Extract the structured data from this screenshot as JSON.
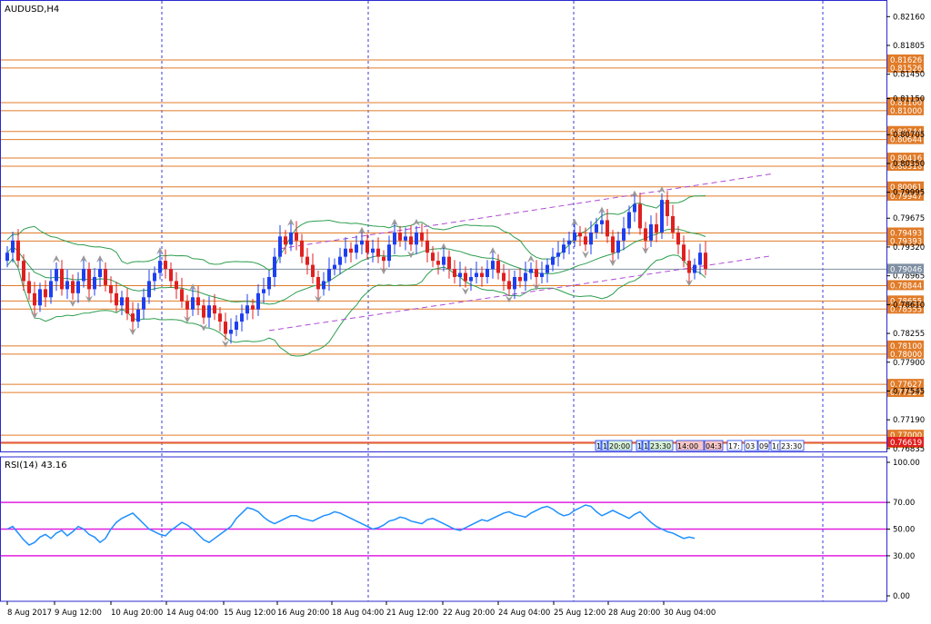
{
  "chart_data": [
    {
      "type": "candlestick",
      "title": "AUDUSD,H4",
      "y_range": [
        0.768,
        0.8232
      ],
      "y_ticks": [
        "0.82160",
        "0.81805",
        "0.81450",
        "0.81150",
        "0.80705",
        "0.80350",
        "0.79995",
        "0.79675",
        "0.79320",
        "0.78965",
        "0.78610",
        "0.78255",
        "0.77900",
        "0.77545",
        "0.77190",
        "0.76835"
      ],
      "x_labels": [
        "8 Aug 2017",
        "9 Aug 12:00",
        "10 Aug 20:00",
        "14 Aug 04:00",
        "15 Aug 12:00",
        "16 Aug 20:00",
        "18 Aug 04:00",
        "21 Aug 12:00",
        "22 Aug 20:00",
        "24 Aug 04:00",
        "25 Aug 12:00",
        "28 Aug 20:00",
        "30 Aug 04:00"
      ],
      "horizontal_levels": [
        0.81626,
        0.81526,
        0.811,
        0.81,
        0.80744,
        0.80644,
        0.80416,
        0.80316,
        0.80061,
        0.79947,
        0.79493,
        0.79393,
        0.78844,
        0.78655,
        0.78555,
        0.781,
        0.78,
        0.77627,
        0.77527,
        0.77,
        0.769
      ],
      "level_labels": [
        "0.81626",
        "0.81526",
        "0.81100",
        "0.81000",
        "0.80744",
        "0.80644",
        "0.80416",
        "0.80316",
        "0.80061",
        "0.79947",
        "0.79493",
        "0.79393",
        "0.78844",
        "0.78655",
        "0.78555",
        "0.78100",
        "0.78000",
        "0.77627",
        "0.77527",
        "0.77000",
        "0.76900"
      ],
      "current_price": "0.79046",
      "marked_price": "0.76619",
      "closes": [
        0.7925,
        0.794,
        0.7915,
        0.789,
        0.7875,
        0.786,
        0.788,
        0.787,
        0.789,
        0.7905,
        0.788,
        0.789,
        0.7875,
        0.789,
        0.7905,
        0.788,
        0.7895,
        0.7905,
        0.7885,
        0.7875,
        0.786,
        0.787,
        0.785,
        0.784,
        0.7855,
        0.787,
        0.789,
        0.79,
        0.7915,
        0.7905,
        0.789,
        0.788,
        0.7865,
        0.7855,
        0.787,
        0.786,
        0.7845,
        0.786,
        0.785,
        0.784,
        0.7825,
        0.783,
        0.784,
        0.785,
        0.786,
        0.7855,
        0.7875,
        0.788,
        0.7895,
        0.792,
        0.7945,
        0.7935,
        0.795,
        0.794,
        0.792,
        0.791,
        0.7895,
        0.788,
        0.789,
        0.7905,
        0.791,
        0.792,
        0.793,
        0.7925,
        0.7935,
        0.794,
        0.7925,
        0.793,
        0.792,
        0.7915,
        0.7935,
        0.795,
        0.794,
        0.7945,
        0.7935,
        0.795,
        0.794,
        0.7925,
        0.7915,
        0.791,
        0.792,
        0.7905,
        0.7895,
        0.79,
        0.789,
        0.7895,
        0.79,
        0.7895,
        0.7905,
        0.7915,
        0.79,
        0.789,
        0.788,
        0.7895,
        0.789,
        0.79,
        0.7905,
        0.7895,
        0.79,
        0.791,
        0.792,
        0.7925,
        0.7935,
        0.794,
        0.795,
        0.7945,
        0.7935,
        0.795,
        0.796,
        0.7965,
        0.7945,
        0.7925,
        0.794,
        0.7955,
        0.7975,
        0.7985,
        0.7955,
        0.794,
        0.796,
        0.795,
        0.799,
        0.797,
        0.795,
        0.7935,
        0.7915,
        0.79,
        0.791,
        0.7925,
        0.7905
      ],
      "bollinger": {
        "period": 20
      },
      "channel": [
        {
          "from": [
            48,
            0.7829
          ],
          "to": [
            140,
            0.7921
          ]
        },
        {
          "from": [
            50,
            0.793
          ],
          "to": [
            140,
            0.8022
          ]
        }
      ]
    },
    {
      "type": "line",
      "title": "RSI(14) 43.16",
      "y_range": [
        0,
        100
      ],
      "y_ticks": [
        "100.00",
        "70.00",
        "50.00",
        "30.00",
        "0.00"
      ],
      "levels": [
        70,
        50,
        30
      ],
      "values": [
        50,
        52,
        47,
        42,
        38,
        40,
        44,
        46,
        43,
        47,
        49,
        45,
        48,
        52,
        50,
        46,
        44,
        40,
        43,
        50,
        55,
        58,
        60,
        62,
        58,
        54,
        50,
        48,
        46,
        45,
        49,
        52,
        55,
        53,
        50,
        46,
        42,
        40,
        43,
        46,
        49,
        52,
        58,
        62,
        66,
        65,
        63,
        59,
        56,
        54,
        56,
        58,
        60,
        60,
        58,
        57,
        56,
        58,
        60,
        61,
        63,
        62,
        60,
        58,
        56,
        54,
        52,
        50,
        51,
        53,
        56,
        57,
        59,
        58,
        56,
        55,
        54,
        57,
        58,
        56,
        54,
        52,
        50,
        49,
        51,
        53,
        55,
        57,
        56,
        58,
        60,
        62,
        63,
        61,
        60,
        59,
        62,
        64,
        66,
        67,
        65,
        62,
        60,
        61,
        64,
        66,
        68,
        67,
        63,
        60,
        62,
        64,
        62,
        60,
        58,
        61,
        63,
        59,
        55,
        52,
        50,
        48,
        47,
        45,
        43,
        44,
        43.16
      ]
    }
  ],
  "tags": {
    "labels": [
      "1",
      "1",
      "20:00",
      "1",
      "1",
      "23:30",
      "14:00",
      "04:3",
      "17:",
      "03",
      "09",
      "1(",
      "23:30"
    ]
  },
  "colors": {
    "level": "#e07b28",
    "bull": "#1e3ff0",
    "bear": "#e02020",
    "bollinger": "#2e9e4e",
    "channel": "#b04ad6",
    "rsi": "#1e90ff",
    "rsi_level": "#e020e0",
    "grid": "#3a3ad8",
    "axis": "#2a2ad0",
    "price_tag": "#e07b28",
    "current_tag": "#7f8fa3",
    "marked_tag": "#e02020"
  }
}
